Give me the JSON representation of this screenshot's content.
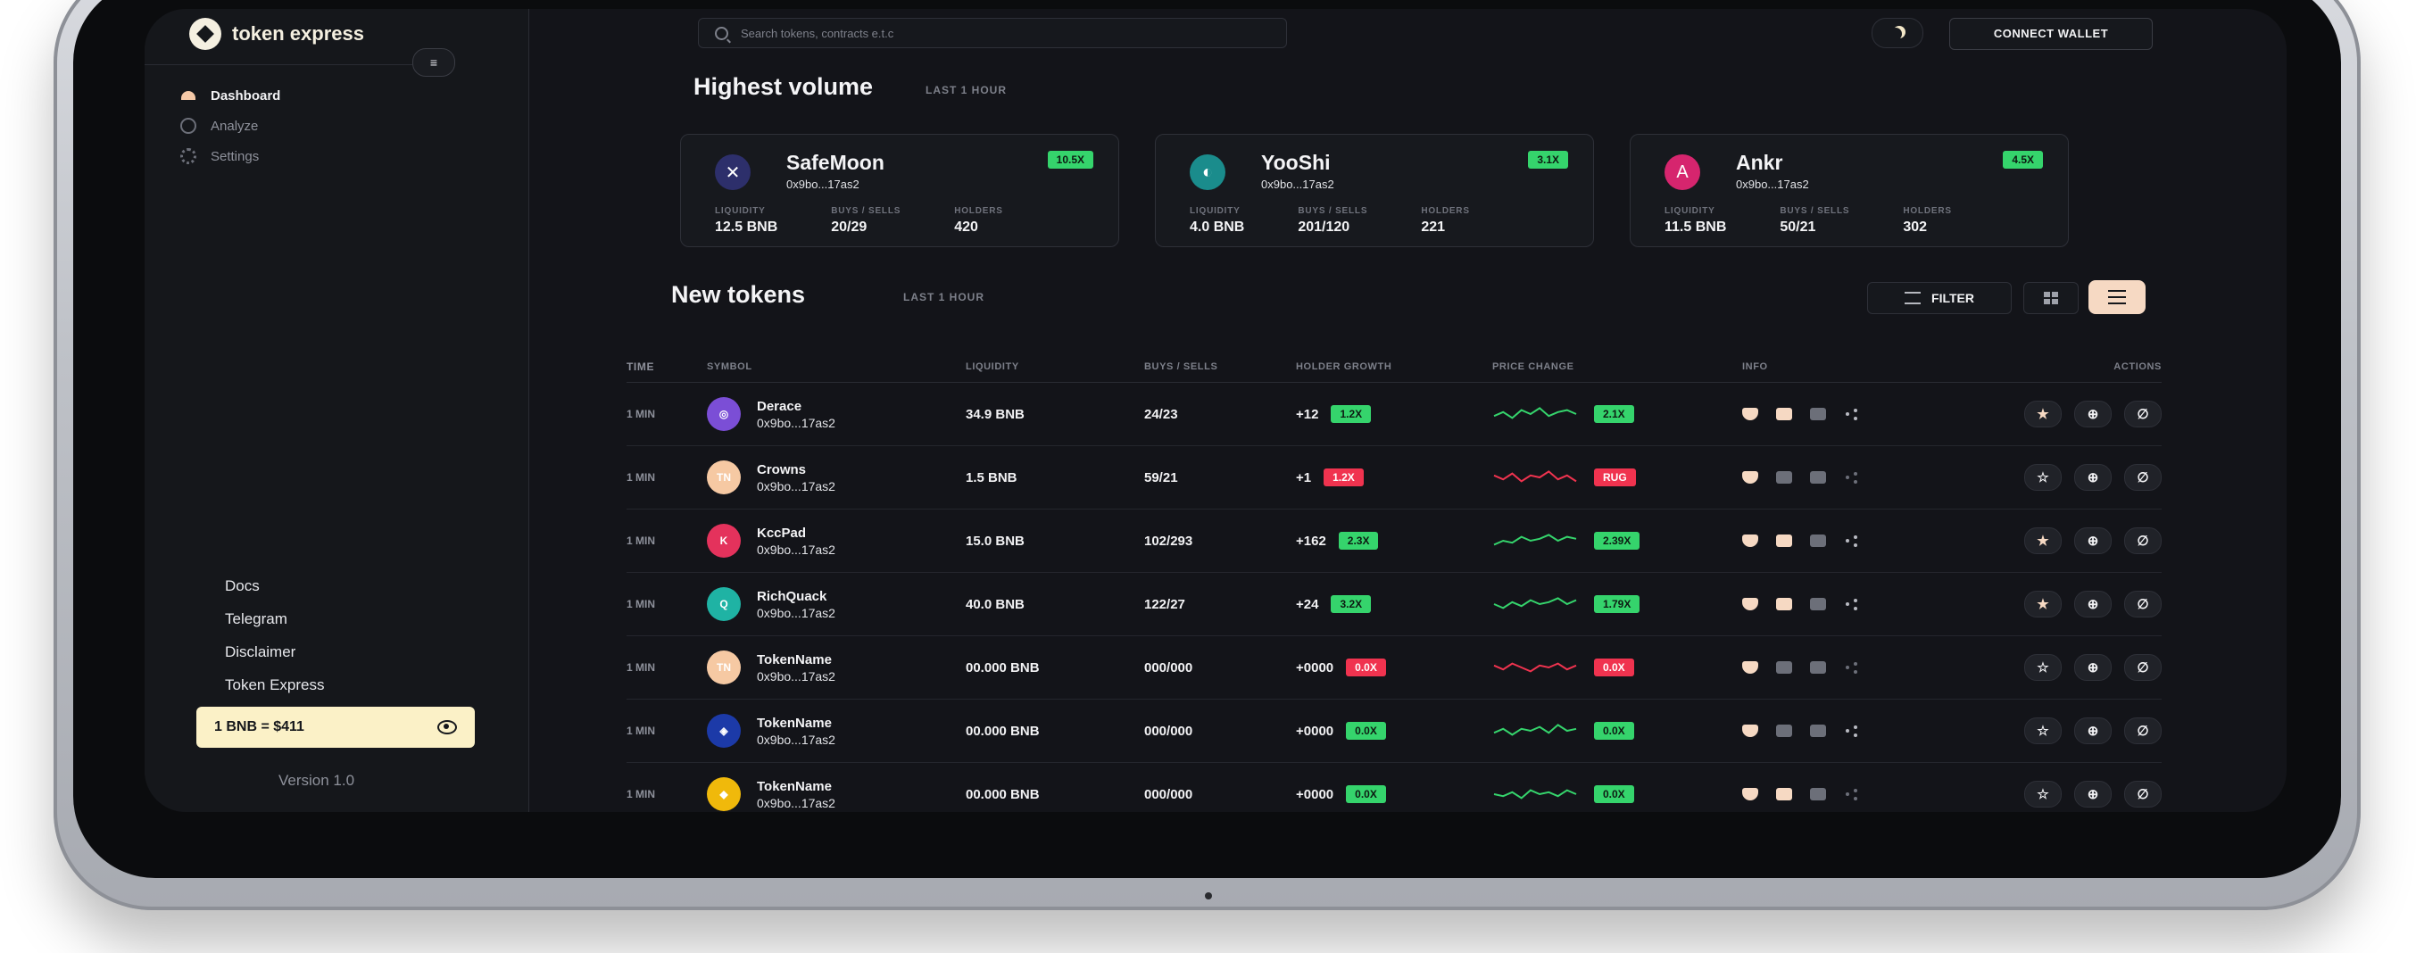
{
  "brand": {
    "name": "token express"
  },
  "sidebar": {
    "nav": [
      {
        "label": "Dashboard",
        "icon": "dashboard-icon",
        "active": true
      },
      {
        "label": "Analyze",
        "icon": "analyze-icon",
        "active": false
      },
      {
        "label": "Settings",
        "icon": "gear-icon",
        "active": false
      }
    ],
    "links": [
      "Docs",
      "Telegram",
      "Disclaimer",
      "Token Express"
    ],
    "price": "1 BNB = $411",
    "version": "Version 1.0"
  },
  "header": {
    "search_placeholder": "Search tokens, contracts e.t.c",
    "connect_wallet": "CONNECT WALLET"
  },
  "highest_volume": {
    "title": "Highest volume",
    "subtitle": "LAST 1 HOUR",
    "cards": [
      {
        "name": "SafeMoon",
        "address": "0x9bo...17as2",
        "badge": "10.5X",
        "liquidity_label": "LIQUIDITY",
        "liquidity": "12.5 BNB",
        "buys_sells_label": "BUYS / SELLS",
        "buys_sells": "20/29",
        "holders_label": "HOLDERS",
        "holders": "420",
        "logo_color": "#2d2f6b",
        "logo_glyph": "✕"
      },
      {
        "name": "YooShi",
        "address": "0x9bo...17as2",
        "badge": "3.1X",
        "liquidity_label": "LIQUIDITY",
        "liquidity": "4.0 BNB",
        "buys_sells_label": "BUYS / SELLS",
        "buys_sells": "201/120",
        "holders_label": "HOLDERS",
        "holders": "221",
        "logo_color": "#1a8c8c",
        "logo_glyph": "◐"
      },
      {
        "name": "Ankr",
        "address": "0x9bo...17as2",
        "badge": "4.5X",
        "liquidity_label": "LIQUIDITY",
        "liquidity": "11.5 BNB",
        "buys_sells_label": "BUYS / SELLS",
        "buys_sells": "50/21",
        "holders_label": "HOLDERS",
        "holders": "302",
        "logo_color": "#d6256e",
        "logo_glyph": "A"
      }
    ]
  },
  "new_tokens": {
    "title": "New tokens",
    "subtitle": "LAST 1 HOUR",
    "filter_label": "FILTER",
    "columns": [
      "TIME",
      "SYMBOL",
      "LIQUIDITY",
      "BUYS / SELLS",
      "HOLDER GROWTH",
      "PRICE CHANGE",
      "INFO",
      "ACTIONS"
    ],
    "rows": [
      {
        "time": "1 MIN",
        "name": "Derace",
        "address": "0x9bo...17as2",
        "liquidity": "34.9 BNB",
        "buys_sells": "24/23",
        "holder_growth": "+12",
        "holder_badge": "1.2X",
        "holder_status": "green",
        "price_change": "2.1X",
        "price_status": "green",
        "logo_color": "#7b4ed6",
        "logo_text": "◎",
        "starred": true,
        "spark": [
          0.4,
          0.6,
          0.3,
          0.7,
          0.5,
          0.8,
          0.4,
          0.6,
          0.7,
          0.5
        ]
      },
      {
        "time": "1 MIN",
        "name": "Crowns",
        "address": "0x9bo...17as2",
        "liquidity": "1.5 BNB",
        "buys_sells": "59/21",
        "holder_growth": "+1",
        "holder_badge": "1.2X",
        "holder_status": "red",
        "price_change": "RUG",
        "price_status": "red",
        "logo_color": "#f6c9a3",
        "logo_text": "TN",
        "starred": false,
        "spark": [
          0.6,
          0.4,
          0.7,
          0.3,
          0.6,
          0.5,
          0.8,
          0.4,
          0.6,
          0.3
        ]
      },
      {
        "time": "1 MIN",
        "name": "KccPad",
        "address": "0x9bo...17as2",
        "liquidity": "15.0 BNB",
        "buys_sells": "102/293",
        "holder_growth": "+162",
        "holder_badge": "2.3X",
        "holder_status": "green",
        "price_change": "2.39X",
        "price_status": "green",
        "logo_color": "#e4325c",
        "logo_text": "K",
        "starred": true,
        "spark": [
          0.3,
          0.5,
          0.4,
          0.7,
          0.5,
          0.6,
          0.8,
          0.5,
          0.7,
          0.6
        ]
      },
      {
        "time": "1 MIN",
        "name": "RichQuack",
        "address": "0x9bo...17as2",
        "liquidity": "40.0 BNB",
        "buys_sells": "122/27",
        "holder_growth": "+24",
        "holder_badge": "3.2X",
        "holder_status": "green",
        "price_change": "1.79X",
        "price_status": "green",
        "logo_color": "#1fb3a4",
        "logo_text": "Q",
        "starred": true,
        "spark": [
          0.5,
          0.3,
          0.6,
          0.4,
          0.7,
          0.5,
          0.6,
          0.8,
          0.5,
          0.7
        ]
      },
      {
        "time": "1 MIN",
        "name": "TokenName",
        "address": "0x9bo...17as2",
        "liquidity": "00.000 BNB",
        "buys_sells": "000/000",
        "holder_growth": "+0000",
        "holder_badge": "0.0X",
        "holder_status": "red",
        "price_change": "0.0X",
        "price_status": "red",
        "logo_color": "#f6c9a3",
        "logo_text": "TN",
        "starred": false,
        "spark": [
          0.6,
          0.4,
          0.7,
          0.5,
          0.3,
          0.6,
          0.5,
          0.7,
          0.4,
          0.6
        ]
      },
      {
        "time": "1 MIN",
        "name": "TokenName",
        "address": "0x9bo...17as2",
        "liquidity": "00.000 BNB",
        "buys_sells": "000/000",
        "holder_growth": "+0000",
        "holder_badge": "0.0X",
        "holder_status": "green",
        "price_change": "0.0X",
        "price_status": "green",
        "logo_color": "#1c3aa8",
        "logo_text": "◈",
        "starred": false,
        "spark": [
          0.4,
          0.6,
          0.3,
          0.6,
          0.5,
          0.7,
          0.4,
          0.8,
          0.5,
          0.6
        ]
      },
      {
        "time": "1 MIN",
        "name": "TokenName",
        "address": "0x9bo...17as2",
        "liquidity": "00.000 BNB",
        "buys_sells": "000/000",
        "holder_growth": "+0000",
        "holder_badge": "0.0X",
        "holder_status": "green",
        "price_change": "0.0X",
        "price_status": "green",
        "logo_color": "#f0b90b",
        "logo_text": "◆",
        "starred": false,
        "spark": [
          0.5,
          0.4,
          0.6,
          0.3,
          0.7,
          0.5,
          0.6,
          0.4,
          0.7,
          0.5
        ]
      }
    ]
  }
}
